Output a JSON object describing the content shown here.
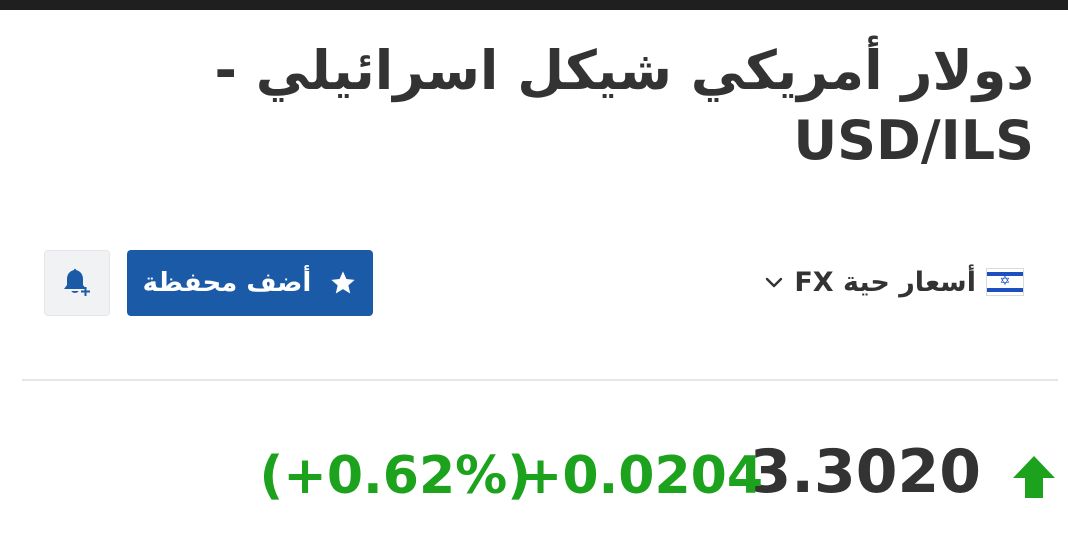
{
  "header": {
    "title_arabic": "دولار أمريكي شيكل اسرائيلي",
    "title_separator": "-",
    "title_symbol": "USD/ILS"
  },
  "market": {
    "flag_icon": "israel-flag-icon",
    "label": "أسعار حية FX"
  },
  "actions": {
    "portfolio_label": "أضف محفظة",
    "portfolio_icon": "star-icon",
    "alert_icon": "bell-plus-icon"
  },
  "quote": {
    "last": "3.3020",
    "change": "+0.0204",
    "change_percent": "(+0.62%)",
    "direction": "up"
  },
  "colors": {
    "accent_blue": "#1b5aa6",
    "positive_green": "#1da21d",
    "text_dark": "#333333",
    "flag_blue": "#1d4fc1"
  }
}
